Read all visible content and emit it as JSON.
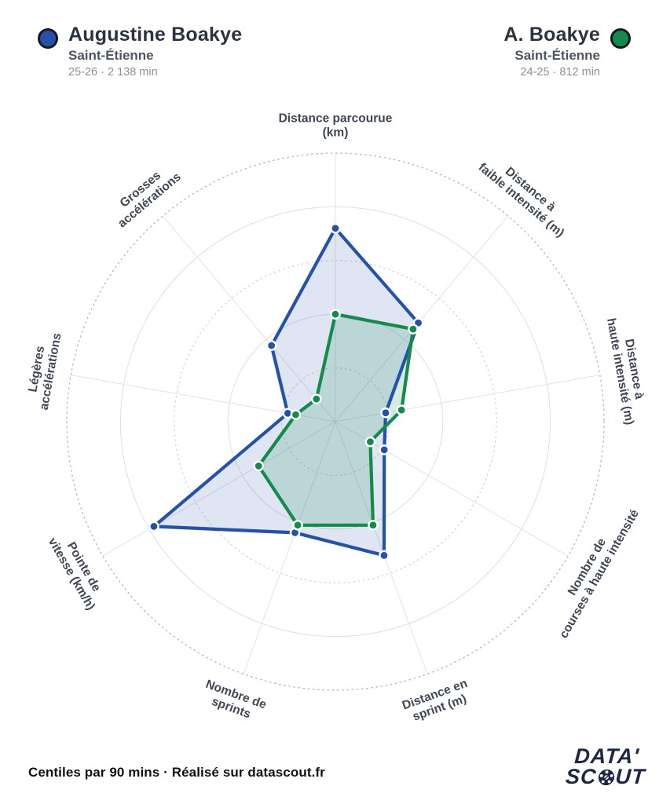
{
  "header": {
    "left_player": {
      "name": "Augustine Boakye",
      "team": "Saint-Étienne",
      "season": "25-26 · 2 138 min",
      "color": "#2551a8"
    },
    "right_player": {
      "name": "A. Boakye",
      "team": "Saint-Étienne",
      "season": "24-25 · 812 min",
      "color": "#148a4c"
    }
  },
  "chart_data": {
    "type": "radar",
    "units": "centile (0-100)",
    "rings": [
      20,
      40,
      60,
      80,
      100
    ],
    "ring_styles": [
      "dotted",
      "solid",
      "dotted",
      "solid",
      "dotted"
    ],
    "axis_start": "top",
    "direction": "clockwise",
    "categories": [
      "Distance parcourue (km)",
      "Distance à faible intensité (m)",
      "Distance à haute intensité (m)",
      "Nombre de courses à haute intensité",
      "Distance en sprint (m)",
      "Nombre de sprints",
      "Pointe de vitesse (km/h)",
      "Légères accélérations",
      "Grosses accélérations"
    ],
    "category_label_lines": [
      [
        "Distance parcourue",
        "(km)"
      ],
      [
        "Distance à",
        "faible intensité (m)"
      ],
      [
        "Distance à",
        "haute intensité (m)"
      ],
      [
        "Nombre de",
        "courses à haute intensité"
      ],
      [
        "Distance en",
        "sprint (m)"
      ],
      [
        "Nombre de",
        "sprints"
      ],
      [
        "Pointe de",
        "vitesse (km/h)"
      ],
      [
        "Légères",
        "accélérations"
      ],
      [
        "Grosses",
        "accélérations"
      ]
    ],
    "series": [
      {
        "name": "Augustine Boakye · 25-26 · 2 138 min",
        "color": "#2551a8",
        "fill_opacity": 0.15,
        "values": [
          72,
          48,
          19,
          21,
          53,
          44,
          78,
          18,
          37
        ]
      },
      {
        "name": "A. Boakye · 24-25 · 812 min",
        "color": "#148a4c",
        "fill_opacity": 0.17,
        "values": [
          40,
          45,
          25,
          15,
          41,
          41,
          33,
          15,
          11
        ]
      }
    ]
  },
  "footer": {
    "note": "Centiles par 90 mins · Réalisé sur datascout.fr"
  },
  "logo": {
    "line1": "DATA'",
    "line2_prefix": "SC",
    "line2_suffix": "UT"
  }
}
